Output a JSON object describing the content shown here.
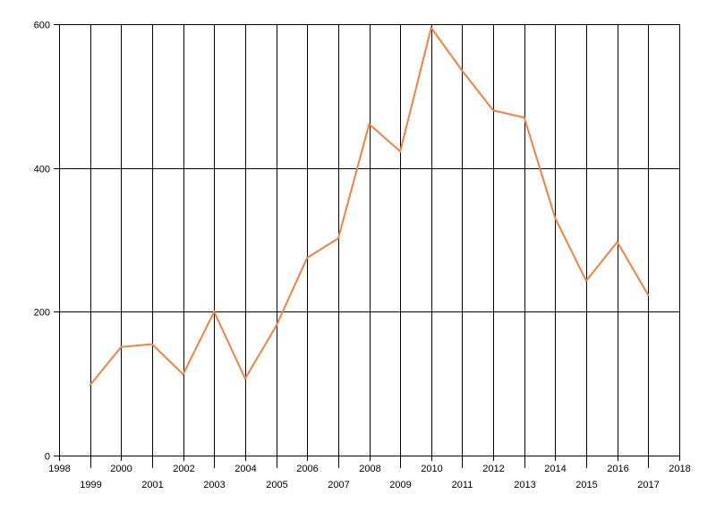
{
  "chart_data": {
    "type": "line",
    "title": "",
    "xlabel": "",
    "ylabel": "",
    "grid": {
      "vertical": true,
      "horizontal": true
    },
    "xlim": [
      1998,
      2018
    ],
    "ylim": [
      0,
      600
    ],
    "x_ticks": [
      1998,
      1999,
      2000,
      2001,
      2002,
      2003,
      2004,
      2005,
      2006,
      2007,
      2008,
      2009,
      2010,
      2011,
      2012,
      2013,
      2014,
      2015,
      2016,
      2017,
      2018
    ],
    "x_tick_labels": [
      "1998",
      "1999",
      "2000",
      "2001",
      "2002",
      "2003",
      "2004",
      "2005",
      "2006",
      "2007",
      "2008",
      "2009",
      "2010",
      "2011",
      "2012",
      "2013",
      "2014",
      "2015",
      "2016",
      "2017",
      "2018"
    ],
    "y_ticks": [
      0,
      200,
      400,
      600
    ],
    "y_tick_labels": [
      "0",
      "200",
      "400",
      "600"
    ],
    "series": [
      {
        "color": "#f5813d",
        "x": [
          1999,
          2000,
          2001,
          2002,
          2003,
          2004,
          2005,
          2006,
          2007,
          2008,
          2009,
          2010,
          2011,
          2012,
          2013,
          2014,
          2015,
          2016,
          2017
        ],
        "values": [
          98,
          151,
          155,
          113,
          200,
          107,
          180,
          275,
          302,
          461,
          423,
          595,
          535,
          480,
          470,
          330,
          243,
          297,
          223
        ]
      }
    ]
  }
}
